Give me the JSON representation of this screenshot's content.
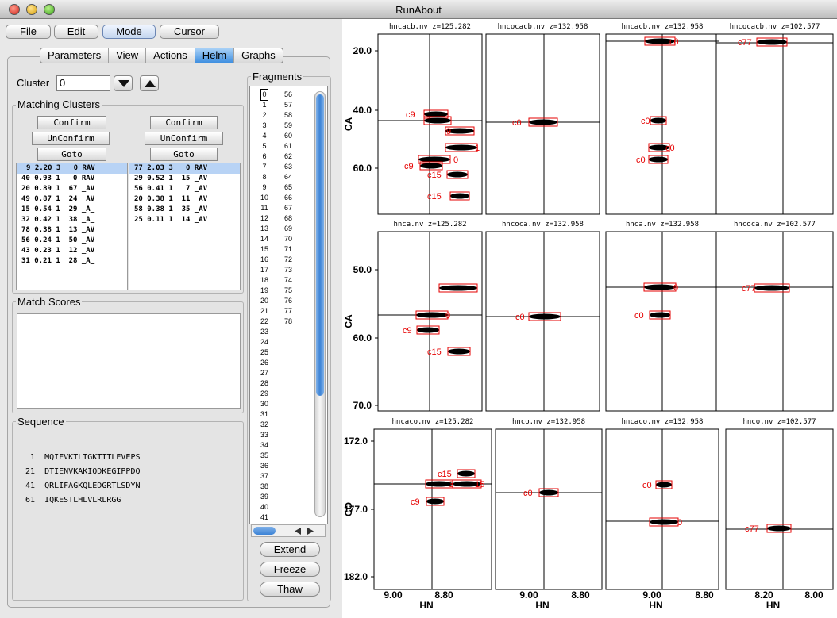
{
  "window": {
    "title": "RunAbout"
  },
  "menu": {
    "file": "File",
    "edit": "Edit",
    "mode": "Mode",
    "cursor": "Cursor"
  },
  "tabs": [
    "Parameters",
    "View",
    "Actions",
    "Helm",
    "Graphs"
  ],
  "cluster": {
    "label": "Cluster",
    "value": "0"
  },
  "matching": {
    "label": "Matching Clusters",
    "confirm": "Confirm",
    "unconfirm": "UnConfirm",
    "goto": "Goto",
    "left_rows": [
      "9 2.20 3   0 RAV",
      "40 0.93 1   0 RAV",
      "20 0.89 1  67 _AV",
      "49 0.87 1  24 _AV",
      "15 0.54 1  29 _A_",
      "32 0.42 1  38 _A_",
      "78 0.38 1  13 _AV",
      "56 0.24 1  50 _AV",
      "43 0.23 1  12 _AV",
      "31 0.21 1  28 _A_"
    ],
    "right_rows": [
      "77 2.03 3   0 RAV",
      "29 0.52 1  15 _AV",
      "56 0.41 1   7 _AV",
      "20 0.38 1  11 _AV",
      "58 0.38 1  35 _AV",
      "25 0.11 1  14 _AV"
    ]
  },
  "match_scores": {
    "label": "Match Scores"
  },
  "sequence": {
    "label": "Sequence",
    "lines": [
      " 1  MQIFVKTLTGKTITLEVEPS",
      "21  DTIENVKAKIQDKEGIPPDQ",
      "41  QRLIFAGKQLEDGRTLSDYN",
      "61  IQKESTLHLVLRLRGG"
    ]
  },
  "fragments": {
    "label": "Fragments",
    "col1": [
      "0",
      "1",
      "2",
      "3",
      "4",
      "5",
      "6",
      "7",
      "8",
      "9",
      "10",
      "11",
      "12",
      "13",
      "14",
      "15",
      "16",
      "17",
      "18",
      "19",
      "20",
      "21",
      "22",
      "23",
      "24",
      "25",
      "26",
      "27",
      "28",
      "29",
      "30",
      "31",
      "32",
      "33",
      "34",
      "35",
      "36",
      "37",
      "38",
      "39",
      "40",
      "41"
    ],
    "col2": [
      "56",
      "57",
      "58",
      "59",
      "60",
      "61",
      "62",
      "63",
      "64",
      "65",
      "66",
      "67",
      "68",
      "69",
      "70",
      "71",
      "72",
      "73",
      "74",
      "75",
      "76",
      "77",
      "78"
    ]
  },
  "actions": {
    "extend": "Extend",
    "freeze": "Freeze",
    "thaw": "Thaw"
  },
  "spectra": {
    "row_titles": [
      [
        "hncacb.nv  z=125.282",
        "hncocacb.nv  z=132.958",
        "hncacb.nv  z=132.958",
        "hncocacb.nv  z=102.577"
      ],
      [
        "hnca.nv  z=125.282",
        "hncoca.nv  z=132.958",
        "hnca.nv  z=132.958",
        "hncoca.nv  z=102.577"
      ],
      [
        "hncaco.nv  z=125.282",
        "hnco.nv  z=132.958",
        "hncaco.nv  z=132.958",
        "hnco.nv  z=102.577"
      ]
    ],
    "y_axis_label_ca": "CA",
    "y_axis_label_co": "CO",
    "x_axis_label": "HN",
    "row1_yticks": [
      "20.0",
      "40.0",
      "60.0"
    ],
    "row2_yticks": [
      "50.0",
      "60.0",
      "70.0"
    ],
    "row3_yticks": [
      "172.0",
      "177.0",
      "182.0"
    ],
    "xticks": [
      [
        "9.00",
        "8.80"
      ],
      [
        "9.00",
        "8.80"
      ],
      [
        "9.00",
        "8.80"
      ],
      [
        "8.20",
        "8.00"
      ]
    ],
    "peak_labels": [
      "c0",
      "c9",
      "c15",
      "c77",
      "9",
      "1",
      "0",
      "15"
    ]
  },
  "colors": {
    "peak_label": "#e60000",
    "contour": "#000000",
    "crosshair": "#000000",
    "selected_tab": "#3f8fe0"
  }
}
